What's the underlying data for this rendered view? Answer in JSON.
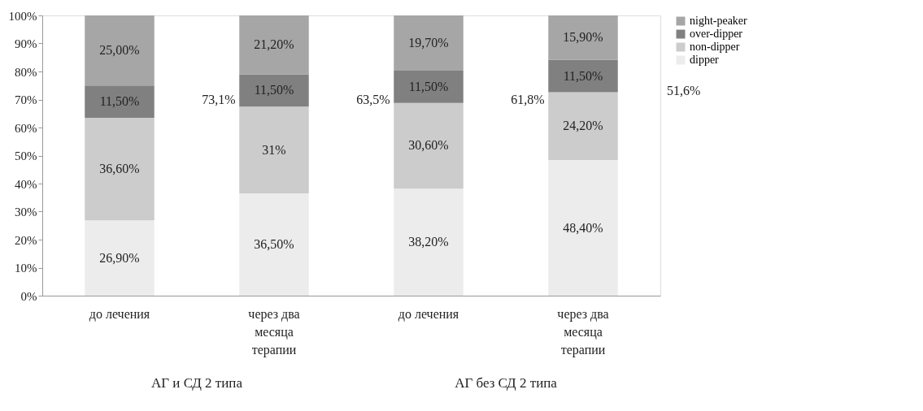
{
  "chart_data": {
    "type": "bar",
    "stacked": true,
    "categories": [
      "до лечения",
      "через два месяца терапии",
      "до лечения",
      "через два месяца терапии"
    ],
    "series": [
      {
        "name": "dipper",
        "color": "#ececec",
        "values": [
          26.9,
          36.5,
          38.2,
          48.4
        ],
        "value_labels": [
          "26,90%",
          "36,50%",
          "38,20%",
          "48,40%"
        ]
      },
      {
        "name": "non-dipper",
        "color": "#cccccc",
        "values": [
          36.6,
          31,
          30.6,
          24.2
        ],
        "value_labels": [
          "36,60%",
          "31%",
          "30,60%",
          "24,20%"
        ]
      },
      {
        "name": "over-dipper",
        "color": "#808080",
        "values": [
          11.5,
          11.5,
          11.5,
          11.5
        ],
        "value_labels": [
          "11,50%",
          "11,50%",
          "11,50%",
          "11,50%"
        ]
      },
      {
        "name": "night-peaker",
        "color": "#a6a6a6",
        "values": [
          25.0,
          21.2,
          19.7,
          15.9
        ],
        "value_labels": [
          "25,00%",
          "21,20%",
          "19,70%",
          "15,90%"
        ]
      }
    ],
    "ylim": [
      0,
      100
    ],
    "yticks": [
      {
        "value": 0,
        "label": "0%"
      },
      {
        "value": 10,
        "label": "10%"
      },
      {
        "value": 20,
        "label": "20%"
      },
      {
        "value": 30,
        "label": "30%"
      },
      {
        "value": 40,
        "label": "40%"
      },
      {
        "value": 50,
        "label": "50%"
      },
      {
        "value": 60,
        "label": "60%"
      },
      {
        "value": 70,
        "label": "70%"
      },
      {
        "value": 80,
        "label": "80%"
      },
      {
        "value": 90,
        "label": "90%"
      },
      {
        "value": 100,
        "label": "100%"
      }
    ],
    "annotations": [
      "73,1%",
      "63,5%",
      "61,8%",
      "51,6%",
      "АГ и СД 2 типа",
      "АГ без СД 2 типа"
    ],
    "legend": "right",
    "grid": false
  }
}
